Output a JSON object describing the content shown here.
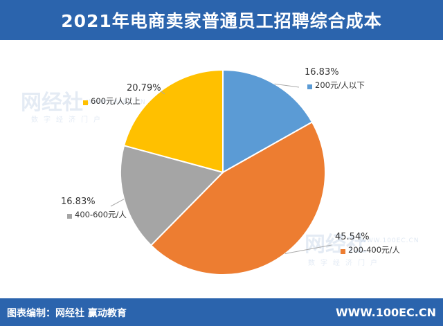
{
  "header": {
    "title": "2021年电商卖家普通员工招聘综合成本"
  },
  "footer": {
    "credit": "图表编制：网经社  赢动教育",
    "site": "WWW.100EC.CN"
  },
  "watermark": {
    "brand": "网经社",
    "url": "WWW.100EC.CN",
    "sub": "数字经济门户"
  },
  "chart_data": {
    "type": "pie",
    "title": "2021年电商卖家普通员工招聘综合成本",
    "slices": [
      {
        "label": "200元/人以下",
        "value": 16.83,
        "display": "16.83%",
        "color": "#5b9bd5"
      },
      {
        "label": "200-400元/人",
        "value": 45.54,
        "display": "45.54%",
        "color": "#ed7d31"
      },
      {
        "label": "400-600元/人",
        "value": 16.83,
        "display": "16.83%",
        "color": "#a5a5a5"
      },
      {
        "label": "600元/人以上",
        "value": 20.79,
        "display": "20.79%",
        "color": "#ffc000"
      }
    ]
  }
}
